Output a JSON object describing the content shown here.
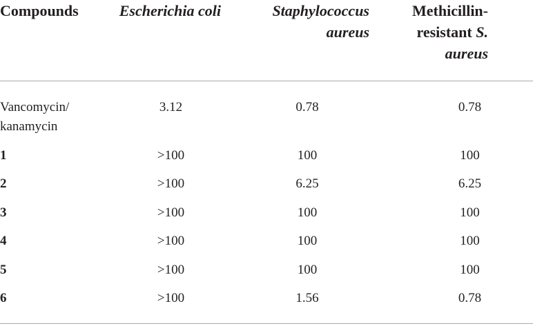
{
  "table": {
    "header": [
      [
        "Compounds"
      ],
      [
        "Escherichia coli"
      ],
      [
        "Staphylococcus aureus"
      ],
      [
        "Methicillin-resistant",
        "S. aureus"
      ]
    ],
    "rows": [
      [
        "Vancomycin/\nkanamycin",
        "3.12",
        "0.78",
        "0.78"
      ],
      [
        "1",
        ">100",
        "100",
        "100"
      ],
      [
        "2",
        ">100",
        "6.25",
        "6.25"
      ],
      [
        "3",
        ">100",
        "100",
        "100"
      ],
      [
        "4",
        ">100",
        "100",
        "100"
      ],
      [
        "5",
        ">100",
        "100",
        "100"
      ],
      [
        "6",
        ">100",
        "1.56",
        "0.78"
      ]
    ]
  }
}
